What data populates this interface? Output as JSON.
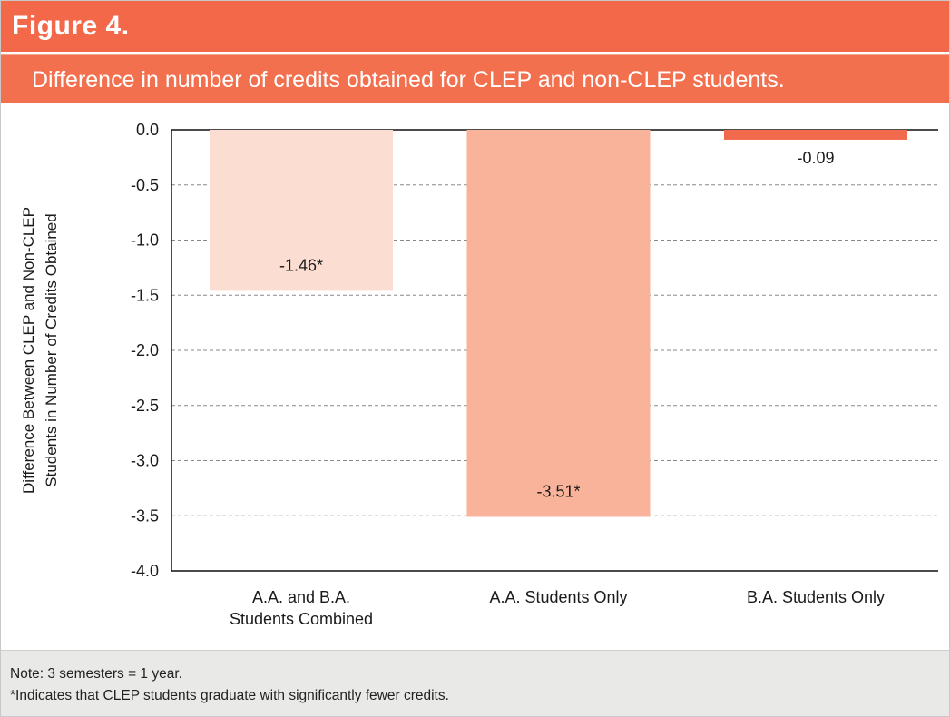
{
  "chart_data": {
    "type": "bar",
    "title": "Figure 4.",
    "subtitle": "Difference in number of credits obtained for CLEP and non-CLEP students.",
    "y_label": [
      "Difference Between CLEP and Non-CLEP",
      "Students in Number of Credits Obtained"
    ],
    "categories": [
      "A.A. and B.A. Students Combined",
      "A.A. Students Only",
      "B.A. Students Only"
    ],
    "values": [
      -1.46,
      -3.51,
      -0.09
    ],
    "value_labels": [
      "-1.46*",
      "-3.51*",
      "-0.09"
    ],
    "colors": [
      "#fcddd1",
      "#f9b39a",
      "#f26a4c"
    ],
    "ylim": [
      -4,
      0
    ],
    "yticks": [
      {
        "value": 0,
        "label": "0.0"
      },
      -0.5,
      {
        "value": -1,
        "label": "-1.0"
      },
      -1.5,
      {
        "value": -2,
        "label": "-2.0"
      },
      -2.5,
      {
        "value": -3,
        "label": "-3.0"
      },
      -3.5,
      {
        "value": -4,
        "label": "-4.0"
      }
    ],
    "grid": true,
    "notes": [
      "Note: 3 semesters = 1 year.",
      "*Indicates that CLEP students graduate with significantly fewer credits."
    ]
  }
}
